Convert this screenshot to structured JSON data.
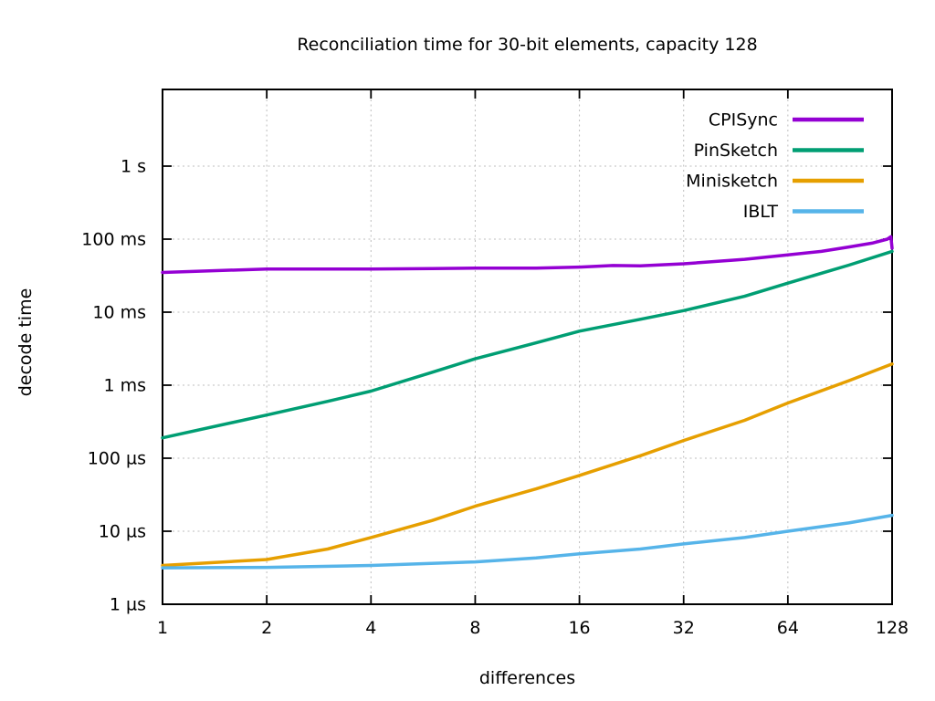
{
  "chart_data": {
    "type": "line",
    "title": "Reconciliation time for 30-bit elements, capacity 128",
    "xlabel": "differences",
    "ylabel": "decode time",
    "x_scale": "log2",
    "y_scale": "log10",
    "x_range": [
      1,
      128
    ],
    "y_range_us": [
      1,
      1000000
    ],
    "grid": true,
    "legend_position": "top-right-inside",
    "x_ticks": [
      1,
      2,
      4,
      8,
      16,
      32,
      64,
      128
    ],
    "y_ticks": [
      {
        "label": "1 µs",
        "us": 1
      },
      {
        "label": "10 µs",
        "us": 10
      },
      {
        "label": "100 µs",
        "us": 100
      },
      {
        "label": "1 ms",
        "us": 1000
      },
      {
        "label": "10 ms",
        "us": 10000
      },
      {
        "label": "100 ms",
        "us": 100000
      },
      {
        "label": "1 s",
        "us": 1000000
      }
    ],
    "series": [
      {
        "name": "CPISync",
        "color": "#9400d3",
        "points_diff_us": [
          [
            1,
            35000
          ],
          [
            2,
            39000
          ],
          [
            4,
            39000
          ],
          [
            6,
            39500
          ],
          [
            8,
            40000
          ],
          [
            12,
            40000
          ],
          [
            16,
            41500
          ],
          [
            20,
            43500
          ],
          [
            24,
            43000
          ],
          [
            32,
            46000
          ],
          [
            48,
            53000
          ],
          [
            64,
            61000
          ],
          [
            80,
            68000
          ],
          [
            96,
            78000
          ],
          [
            112,
            88000
          ],
          [
            124,
            100000
          ],
          [
            127,
            108000
          ],
          [
            128,
            75000
          ]
        ]
      },
      {
        "name": "PinSketch",
        "color": "#009e73",
        "points_diff_us": [
          [
            1,
            190
          ],
          [
            2,
            390
          ],
          [
            3,
            600
          ],
          [
            4,
            830
          ],
          [
            6,
            1500
          ],
          [
            8,
            2300
          ],
          [
            12,
            3800
          ],
          [
            16,
            5500
          ],
          [
            24,
            8000
          ],
          [
            32,
            10500
          ],
          [
            48,
            16500
          ],
          [
            64,
            25000
          ],
          [
            96,
            44000
          ],
          [
            128,
            68000
          ]
        ]
      },
      {
        "name": "Minisketch",
        "color": "#e69f00",
        "points_diff_us": [
          [
            1,
            3.4
          ],
          [
            2,
            4.1
          ],
          [
            3,
            5.7
          ],
          [
            4,
            8.2
          ],
          [
            6,
            14
          ],
          [
            8,
            22
          ],
          [
            12,
            38
          ],
          [
            16,
            58
          ],
          [
            24,
            108
          ],
          [
            32,
            175
          ],
          [
            48,
            330
          ],
          [
            64,
            570
          ],
          [
            96,
            1150
          ],
          [
            128,
            1950
          ]
        ]
      },
      {
        "name": "IBLT",
        "color": "#56b4e9",
        "points_diff_us": [
          [
            1,
            3.15
          ],
          [
            2,
            3.2
          ],
          [
            4,
            3.4
          ],
          [
            8,
            3.8
          ],
          [
            12,
            4.3
          ],
          [
            16,
            4.9
          ],
          [
            24,
            5.7
          ],
          [
            32,
            6.7
          ],
          [
            48,
            8.2
          ],
          [
            64,
            10
          ],
          [
            96,
            13
          ],
          [
            128,
            16.5
          ]
        ]
      }
    ],
    "style_colors": {
      "axis": "#000000",
      "grid": "#bdbdbd",
      "background": "#ffffff"
    }
  }
}
